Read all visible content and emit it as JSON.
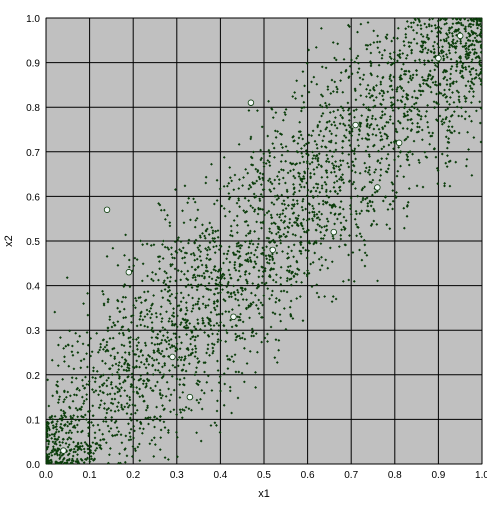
{
  "chart_data": {
    "type": "scatter",
    "title": "",
    "xlabel": "x1",
    "ylabel": "x2",
    "xlim": [
      0.0,
      1.0
    ],
    "ylim": [
      0.0,
      1.0
    ],
    "x_ticks": [
      "0.0",
      "0.1",
      "0.2",
      "0.3",
      "0.4",
      "0.5",
      "0.6",
      "0.7",
      "0.8",
      "0.9",
      "1.0"
    ],
    "y_ticks": [
      "0.0",
      "0.1",
      "0.2",
      "0.3",
      "0.4",
      "0.5",
      "0.6",
      "0.7",
      "0.8",
      "0.9",
      "1.0"
    ],
    "grid": true,
    "legend": "none",
    "colors": {
      "plot_background": "#c0c0c0",
      "grid": "#000000",
      "sample_points": "#0b3d0b",
      "highlight_fill": "#f4f8f8",
      "highlight_stroke": "#0b3d0b"
    },
    "series": [
      {
        "marker": "small-dark-diamond",
        "count": 3200,
        "distribution": "dense along the diagonal x1 = x2, broadly spread in the 0.1–0.9 band, tight clusters near (0,0) and (1,1)"
      },
      {
        "marker": "white-circle",
        "points": [
          [
            0.04,
            0.03
          ],
          [
            0.14,
            0.57
          ],
          [
            0.19,
            0.43
          ],
          [
            0.29,
            0.24
          ],
          [
            0.33,
            0.15
          ],
          [
            0.43,
            0.33
          ],
          [
            0.47,
            0.81
          ],
          [
            0.52,
            0.48
          ],
          [
            0.66,
            0.52
          ],
          [
            0.71,
            0.76
          ],
          [
            0.76,
            0.62
          ],
          [
            0.81,
            0.72
          ],
          [
            0.9,
            0.91
          ],
          [
            0.95,
            0.96
          ]
        ]
      }
    ]
  }
}
